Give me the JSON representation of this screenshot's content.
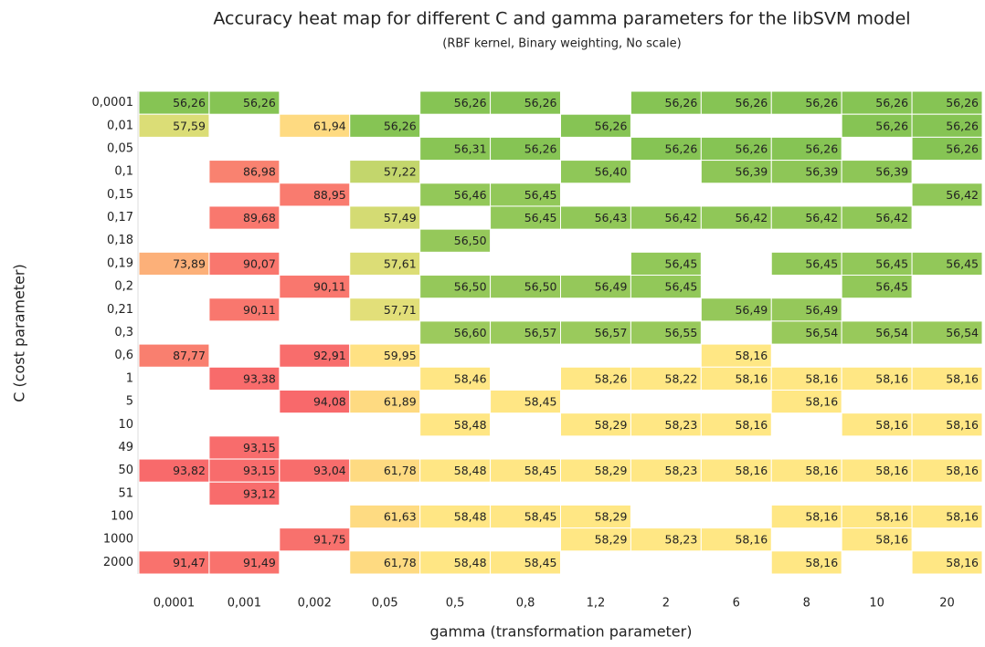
{
  "chart_data": {
    "type": "heatmap",
    "title": "Accuracy heat map for different C and gamma parameters for the libSVM model",
    "subtitle": "(RBF kernel, Binary weighting, No scale)",
    "xlabel": "gamma (transformation parameter)",
    "ylabel": "C (cost parameter)",
    "x_categories": [
      "0,0001",
      "0,001",
      "0,002",
      "0,05",
      "0,5",
      "0,8",
      "1,2",
      "2",
      "6",
      "8",
      "10",
      "20"
    ],
    "y_categories": [
      "0,0001",
      "0,01",
      "0,05",
      "0,1",
      "0,15",
      "0,17",
      "0,18",
      "0,19",
      "0,2",
      "0,21",
      "0,3",
      "0,6",
      "1",
      "5",
      "10",
      "49",
      "50",
      "51",
      "100",
      "1000",
      "2000"
    ],
    "colors": {
      "min": "#86c454",
      "mid": "#ffe784",
      "max": "#f8696b"
    },
    "values": [
      [
        56.26,
        56.26,
        null,
        null,
        56.26,
        56.26,
        null,
        56.26,
        56.26,
        56.26,
        56.26,
        56.26
      ],
      [
        57.59,
        null,
        61.94,
        56.26,
        null,
        null,
        56.26,
        null,
        null,
        null,
        56.26,
        56.26
      ],
      [
        null,
        null,
        null,
        null,
        56.31,
        56.26,
        null,
        56.26,
        56.26,
        56.26,
        null,
        56.26
      ],
      [
        null,
        86.98,
        null,
        57.22,
        null,
        null,
        56.4,
        null,
        56.39,
        56.39,
        56.39,
        null
      ],
      [
        null,
        null,
        88.95,
        null,
        56.46,
        56.45,
        null,
        null,
        null,
        null,
        null,
        56.42
      ],
      [
        null,
        89.68,
        null,
        57.49,
        null,
        56.45,
        56.43,
        56.42,
        56.42,
        56.42,
        56.42,
        null
      ],
      [
        null,
        null,
        null,
        null,
        56.5,
        null,
        null,
        null,
        null,
        null,
        null,
        null
      ],
      [
        73.89,
        90.07,
        null,
        57.61,
        null,
        null,
        null,
        56.45,
        null,
        56.45,
        56.45,
        56.45
      ],
      [
        null,
        null,
        90.11,
        null,
        56.5,
        56.5,
        56.49,
        56.45,
        null,
        null,
        56.45,
        null
      ],
      [
        null,
        90.11,
        null,
        57.71,
        null,
        null,
        null,
        null,
        56.49,
        56.49,
        null,
        null
      ],
      [
        null,
        null,
        null,
        null,
        56.6,
        56.57,
        56.57,
        56.55,
        null,
        56.54,
        56.54,
        56.54
      ],
      [
        87.77,
        null,
        92.91,
        59.95,
        null,
        null,
        null,
        null,
        58.16,
        null,
        null,
        null
      ],
      [
        null,
        93.38,
        null,
        null,
        58.46,
        null,
        58.26,
        58.22,
        58.16,
        58.16,
        58.16,
        58.16
      ],
      [
        null,
        null,
        94.08,
        61.89,
        null,
        58.45,
        null,
        null,
        null,
        58.16,
        null,
        null
      ],
      [
        null,
        null,
        null,
        null,
        58.48,
        null,
        58.29,
        58.23,
        58.16,
        null,
        58.16,
        58.16
      ],
      [
        null,
        93.15,
        null,
        null,
        null,
        null,
        null,
        null,
        null,
        null,
        null,
        null
      ],
      [
        93.82,
        93.15,
        93.04,
        61.78,
        58.48,
        58.45,
        58.29,
        58.23,
        58.16,
        58.16,
        58.16,
        58.16
      ],
      [
        null,
        93.12,
        null,
        null,
        null,
        null,
        null,
        null,
        null,
        null,
        null,
        null
      ],
      [
        null,
        null,
        null,
        61.63,
        58.48,
        58.45,
        58.29,
        null,
        null,
        58.16,
        58.16,
        58.16
      ],
      [
        null,
        null,
        91.75,
        null,
        null,
        null,
        58.29,
        58.23,
        58.16,
        null,
        58.16,
        null
      ],
      [
        91.47,
        91.49,
        null,
        61.78,
        58.48,
        58.45,
        null,
        null,
        null,
        58.16,
        null,
        58.16
      ]
    ],
    "value_labels": [
      [
        "56,26",
        "56,26",
        null,
        null,
        "56,26",
        "56,26",
        null,
        "56,26",
        "56,26",
        "56,26",
        "56,26",
        "56,26"
      ],
      [
        "57,59",
        null,
        "61,94",
        "56,26",
        null,
        null,
        "56,26",
        null,
        null,
        null,
        "56,26",
        "56,26"
      ],
      [
        null,
        null,
        null,
        null,
        "56,31",
        "56,26",
        null,
        "56,26",
        "56,26",
        "56,26",
        null,
        "56,26"
      ],
      [
        null,
        "86,98",
        null,
        "57,22",
        null,
        null,
        "56,40",
        null,
        "56,39",
        "56,39",
        "56,39",
        null
      ],
      [
        null,
        null,
        "88,95",
        null,
        "56,46",
        "56,45",
        null,
        null,
        null,
        null,
        null,
        "56,42"
      ],
      [
        null,
        "89,68",
        null,
        "57,49",
        null,
        "56,45",
        "56,43",
        "56,42",
        "56,42",
        "56,42",
        "56,42",
        null
      ],
      [
        null,
        null,
        null,
        null,
        "56,50",
        null,
        null,
        null,
        null,
        null,
        null,
        null
      ],
      [
        "73,89",
        "90,07",
        null,
        "57,61",
        null,
        null,
        null,
        "56,45",
        null,
        "56,45",
        "56,45",
        "56,45"
      ],
      [
        null,
        null,
        "90,11",
        null,
        "56,50",
        "56,50",
        "56,49",
        "56,45",
        null,
        null,
        "56,45",
        null
      ],
      [
        null,
        "90,11",
        null,
        "57,71",
        null,
        null,
        null,
        null,
        "56,49",
        "56,49",
        null,
        null
      ],
      [
        null,
        null,
        null,
        null,
        "56,60",
        "56,57",
        "56,57",
        "56,55",
        null,
        "56,54",
        "56,54",
        "56,54"
      ],
      [
        "87,77",
        null,
        "92,91",
        "59,95",
        null,
        null,
        null,
        null,
        "58,16",
        null,
        null,
        null
      ],
      [
        null,
        "93,38",
        null,
        null,
        "58,46",
        null,
        "58,26",
        "58,22",
        "58,16",
        "58,16",
        "58,16",
        "58,16"
      ],
      [
        null,
        null,
        "94,08",
        "61,89",
        null,
        "58,45",
        null,
        null,
        null,
        "58,16",
        null,
        null
      ],
      [
        null,
        null,
        null,
        null,
        "58,48",
        null,
        "58,29",
        "58,23",
        "58,16",
        null,
        "58,16",
        "58,16"
      ],
      [
        null,
        "93,15",
        null,
        null,
        null,
        null,
        null,
        null,
        null,
        null,
        null,
        null
      ],
      [
        "93,82",
        "93,15",
        "93,04",
        "61,78",
        "58,48",
        "58,45",
        "58,29",
        "58,23",
        "58,16",
        "58,16",
        "58,16",
        "58,16"
      ],
      [
        null,
        "93,12",
        null,
        null,
        null,
        null,
        null,
        null,
        null,
        null,
        null,
        null
      ],
      [
        null,
        null,
        null,
        "61,63",
        "58,48",
        "58,45",
        "58,29",
        null,
        null,
        "58,16",
        "58,16",
        "58,16"
      ],
      [
        null,
        null,
        "91,75",
        null,
        null,
        null,
        "58,29",
        "58,23",
        "58,16",
        null,
        "58,16",
        null
      ],
      [
        "91,47",
        "91,49",
        null,
        "61,78",
        "58,48",
        "58,45",
        null,
        null,
        null,
        "58,16",
        null,
        "58,16"
      ]
    ]
  }
}
